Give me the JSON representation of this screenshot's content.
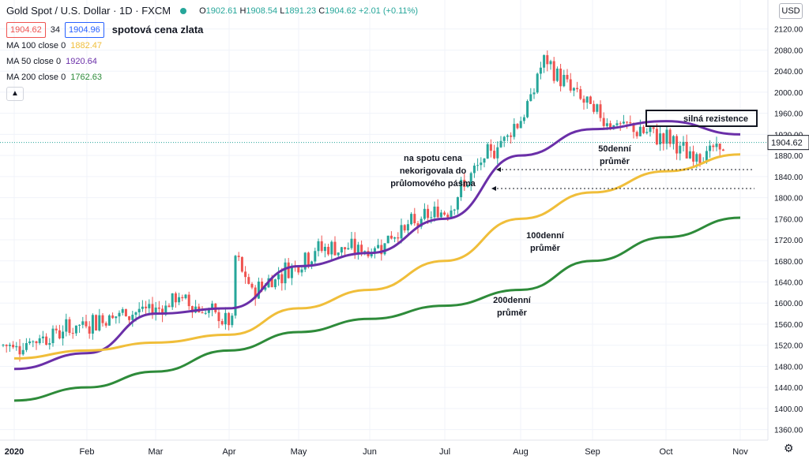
{
  "header": {
    "title": "Gold Spot / U.S. Dollar · 1D · FXCM",
    "ohlc_o_label": "O",
    "ohlc_o": "1902.61",
    "ohlc_h_label": "H",
    "ohlc_h": "1908.54",
    "ohlc_l_label": "L",
    "ohlc_l": "1891.23",
    "ohlc_c_label": "C",
    "ohlc_c": "1904.62",
    "ohlc_change": "+2.01 (+0.11%)",
    "sell_price": "1904.62",
    "spread": "34",
    "buy_price": "1904.96",
    "subtitle": "spotová cena zlata",
    "collapse_icon": "chevron-up-icon",
    "currency": "USD",
    "settings_icon": "gear-icon"
  },
  "indicators": [
    {
      "label": "MA 100 close 0",
      "value": "1882.47",
      "color": "#f0be3a"
    },
    {
      "label": "MA 50 close 0",
      "value": "1920.64",
      "color": "#6a2fa8"
    },
    {
      "label": "MA 200 close 0",
      "value": "1762.63",
      "color": "#2e8b3a"
    }
  ],
  "colors": {
    "up": "#26a69a",
    "down": "#ef5350",
    "price_line": "#26a69a",
    "price_tag_bg": "#ffffff"
  },
  "chart_data": {
    "type": "candlestick",
    "title": "Gold Spot / U.S. Dollar · 1D · FXCM",
    "y_axis": {
      "ylim": [
        1340,
        2160
      ],
      "ticks": [
        1360,
        1400,
        1440,
        1480,
        1520,
        1560,
        1600,
        1640,
        1680,
        1720,
        1760,
        1800,
        1840,
        1880,
        1920,
        1960,
        2000,
        2040,
        2080,
        2120
      ]
    },
    "x_axis": {
      "ticks": [
        "2020",
        "Feb",
        "Mar",
        "Apr",
        "May",
        "Jun",
        "Jul",
        "Aug",
        "Sep",
        "Oct",
        "Nov"
      ]
    },
    "last_price": 1904.62,
    "price_anchors": [
      [
        "2020",
        1520
      ],
      [
        "Feb",
        1575
      ],
      [
        "Mar",
        1590
      ],
      [
        "Mar",
        1610
      ],
      [
        "Apr",
        1560
      ],
      [
        "Apr",
        1620
      ],
      [
        "Apr",
        1700
      ],
      [
        "May",
        1705
      ],
      [
        "Jun",
        1700
      ],
      [
        "Jun",
        1730
      ],
      [
        "Jul",
        1780
      ],
      [
        "Jul",
        1830
      ],
      [
        "Aug",
        1960
      ],
      [
        "Aug",
        2060
      ],
      [
        "Aug",
        1950
      ],
      [
        "Sep",
        1940
      ],
      [
        "Sep",
        1960
      ],
      [
        "Oct",
        1880
      ],
      [
        "Oct",
        1910
      ],
      [
        "Nov",
        1904
      ]
    ],
    "series": [
      {
        "name": "MA 50 close 0",
        "color": "#6a2fa8",
        "points": [
          [
            "2020",
            1475
          ],
          [
            "Feb",
            1505
          ],
          [
            "Mar",
            1580
          ],
          [
            "Apr",
            1590
          ],
          [
            "May",
            1670
          ],
          [
            "Jun",
            1695
          ],
          [
            "Jul",
            1760
          ],
          [
            "Aug",
            1880
          ],
          [
            "Sep",
            1930
          ],
          [
            "Oct",
            1945
          ],
          [
            "Nov",
            1920
          ]
        ]
      },
      {
        "name": "MA 100 close 0",
        "color": "#f0be3a",
        "points": [
          [
            "2020",
            1495
          ],
          [
            "Feb",
            1510
          ],
          [
            "Mar",
            1525
          ],
          [
            "Apr",
            1540
          ],
          [
            "May",
            1590
          ],
          [
            "Jun",
            1625
          ],
          [
            "Jul",
            1680
          ],
          [
            "Aug",
            1760
          ],
          [
            "Sep",
            1810
          ],
          [
            "Oct",
            1850
          ],
          [
            "Nov",
            1882
          ]
        ]
      },
      {
        "name": "MA 200 close 0",
        "color": "#2e8b3a",
        "points": [
          [
            "2020",
            1415
          ],
          [
            "Feb",
            1440
          ],
          [
            "Mar",
            1470
          ],
          [
            "Apr",
            1510
          ],
          [
            "May",
            1545
          ],
          [
            "Jun",
            1570
          ],
          [
            "Jul",
            1595
          ],
          [
            "Aug",
            1625
          ],
          [
            "Sep",
            1680
          ],
          [
            "Oct",
            1725
          ],
          [
            "Nov",
            1762
          ]
        ]
      }
    ],
    "annotations": {
      "resistance": "silná rezistence",
      "note_line1": "na spotu cena",
      "note_line2": "nekorigovala do",
      "note_line3": "průlomového pásma",
      "ma50_line1": "50denní",
      "ma50_line2": "průměr",
      "ma100_line1": "100denní",
      "ma100_line2": "průměr",
      "ma200_line1": "200denní",
      "ma200_line2": "průměr"
    }
  }
}
